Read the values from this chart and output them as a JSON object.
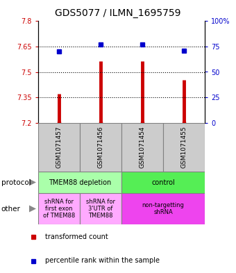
{
  "title": "GDS5077 / ILMN_1695759",
  "samples": [
    "GSM1071457",
    "GSM1071456",
    "GSM1071454",
    "GSM1071455"
  ],
  "bar_values": [
    7.37,
    7.565,
    7.565,
    7.455
  ],
  "bar_bottom": 7.2,
  "blue_values": [
    70,
    77,
    77,
    71
  ],
  "ylim_left": [
    7.2,
    7.8
  ],
  "ylim_right": [
    0,
    100
  ],
  "yticks_left": [
    7.2,
    7.35,
    7.5,
    7.65,
    7.8
  ],
  "yticks_right": [
    0,
    25,
    50,
    75,
    100
  ],
  "ytick_labels_left": [
    "7.2",
    "7.35",
    "7.5",
    "7.65",
    "7.8"
  ],
  "ytick_labels_right": [
    "0",
    "25",
    "50",
    "75",
    "100%"
  ],
  "bar_color": "#cc0000",
  "blue_color": "#0000cc",
  "protocol_row": [
    {
      "label": "TMEM88 depletion",
      "color": "#aaffaa",
      "span": [
        0,
        2
      ]
    },
    {
      "label": "control",
      "color": "#55ee55",
      "span": [
        2,
        4
      ]
    }
  ],
  "other_row": [
    {
      "label": "shRNA for\nfirst exon\nof TMEM88",
      "color": "#ffaaff",
      "span": [
        0,
        1
      ]
    },
    {
      "label": "shRNA for\n3'UTR of\nTMEM88",
      "color": "#ffaaff",
      "span": [
        1,
        2
      ]
    },
    {
      "label": "non-targetting\nshRNA",
      "color": "#ee44ee",
      "span": [
        2,
        4
      ]
    }
  ],
  "legend_red_label": "transformed count",
  "legend_blue_label": "percentile rank within the sample",
  "left_label_color": "#cc0000",
  "right_label_color": "#0000cc",
  "protocol_label": "protocol",
  "other_label": "other",
  "grid_dotted_values": [
    7.35,
    7.5,
    7.65
  ],
  "sample_box_color": "#cccccc",
  "title_fontsize": 10
}
